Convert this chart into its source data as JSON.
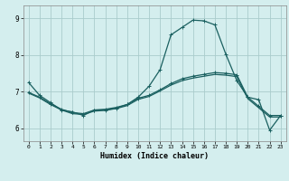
{
  "xlabel": "Humidex (Indice chaleur)",
  "background_color": "#d4eeee",
  "grid_color": "#aacccc",
  "line_color": "#1a6060",
  "xlim": [
    -0.5,
    23.5
  ],
  "ylim": [
    5.65,
    9.35
  ],
  "yticks": [
    6,
    7,
    8,
    9
  ],
  "xticks": [
    0,
    1,
    2,
    3,
    4,
    5,
    6,
    7,
    8,
    9,
    10,
    11,
    12,
    13,
    14,
    15,
    16,
    17,
    18,
    19,
    20,
    21,
    22,
    23
  ],
  "line1_y": [
    7.25,
    6.9,
    6.7,
    6.5,
    6.45,
    6.35,
    6.5,
    6.5,
    6.55,
    6.65,
    6.85,
    7.15,
    7.6,
    8.55,
    8.75,
    8.95,
    8.93,
    8.82,
    8.02,
    7.3,
    6.85,
    6.78,
    5.95,
    6.35
  ],
  "line2_y": [
    6.98,
    6.85,
    6.67,
    6.52,
    6.43,
    6.4,
    6.5,
    6.52,
    6.57,
    6.65,
    6.82,
    6.9,
    7.05,
    7.22,
    7.35,
    7.42,
    7.47,
    7.52,
    7.5,
    7.46,
    6.85,
    6.6,
    6.35,
    6.35
  ],
  "line3_y": [
    6.96,
    6.83,
    6.65,
    6.5,
    6.4,
    6.38,
    6.47,
    6.49,
    6.54,
    6.62,
    6.79,
    6.87,
    7.02,
    7.18,
    7.3,
    7.37,
    7.42,
    7.47,
    7.45,
    7.41,
    6.81,
    6.56,
    6.31,
    6.31
  ]
}
